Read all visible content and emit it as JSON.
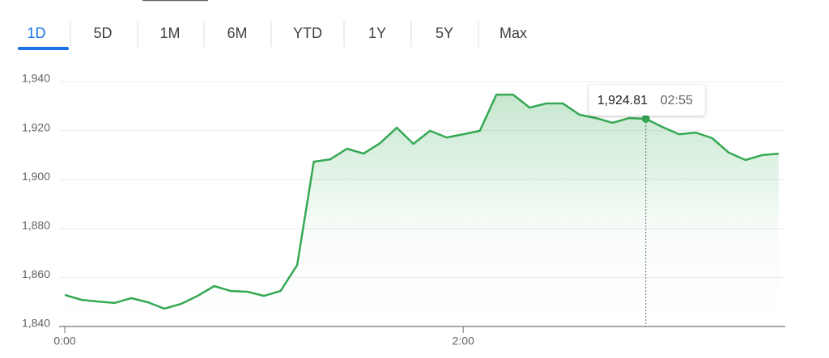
{
  "tabs": {
    "items": [
      "1D",
      "5D",
      "1M",
      "6M",
      "YTD",
      "1Y",
      "5Y",
      "Max"
    ],
    "selected": 0
  },
  "chart_data": {
    "type": "line",
    "x": [
      0,
      5,
      10,
      15,
      20,
      25,
      30,
      35,
      40,
      45,
      50,
      55,
      60,
      65,
      70,
      75,
      80,
      85,
      90,
      95,
      100,
      105,
      110,
      115,
      120,
      125,
      130,
      135,
      140,
      145,
      150,
      155,
      160,
      165,
      170,
      175,
      180,
      185,
      190,
      195,
      200,
      205,
      210,
      215
    ],
    "values": [
      1852.9,
      1850.9,
      1850.2,
      1849.6,
      1851.6,
      1849.9,
      1847.3,
      1849.2,
      1852.5,
      1856.5,
      1854.5,
      1854.2,
      1852.5,
      1854.5,
      1865.1,
      1907.3,
      1908.3,
      1912.6,
      1910.6,
      1914.9,
      1921.2,
      1914.6,
      1919.9,
      1917.2,
      1918.5,
      1919.9,
      1934.7,
      1934.7,
      1929.4,
      1931.1,
      1931.1,
      1926.5,
      1925.1,
      1923.2,
      1925.1,
      1924.81,
      1921.5,
      1918.5,
      1919.2,
      1916.9,
      1911.0,
      1908.0,
      1910.0,
      1910.6
    ],
    "color": "#34a853",
    "xlim": [
      0,
      217
    ],
    "xticks": [
      {
        "value": 0,
        "label": "0:00"
      },
      {
        "value": 120,
        "label": "2:00"
      }
    ],
    "ylim": [
      1840,
      1940
    ],
    "yticks": [
      {
        "value": 1840,
        "label": "1,840"
      },
      {
        "value": 1860,
        "label": "1,860"
      },
      {
        "value": 1880,
        "label": "1,880"
      },
      {
        "value": 1900,
        "label": "1,900"
      },
      {
        "value": 1920,
        "label": "1,920"
      },
      {
        "value": 1940,
        "label": "1,940"
      }
    ],
    "grid": true,
    "tooltip": {
      "index": 35,
      "value_label": "1,924.81",
      "time_label": "02:55"
    }
  }
}
